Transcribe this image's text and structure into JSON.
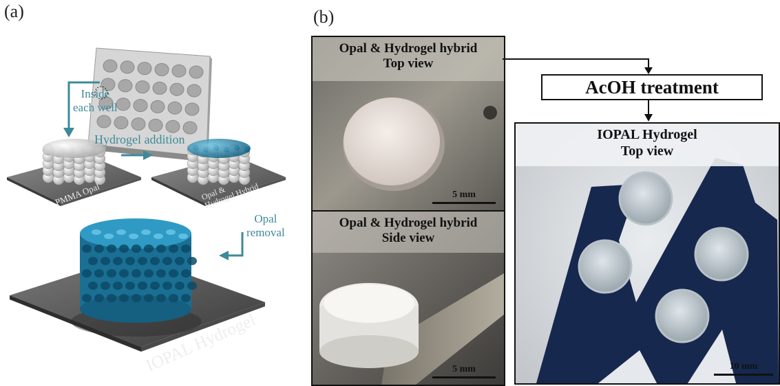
{
  "panel_a": {
    "label": "(a)",
    "step_inside_well": [
      "Inside",
      "each well"
    ],
    "step_hydrogel_addition": "Hydrogel addition",
    "step_opal_removal": [
      "Opal",
      "removal"
    ],
    "plate_pmma": "PMMA Opal",
    "plate_hybrid": [
      "Opal &",
      "Hydrogel Hybrid"
    ],
    "plate_iopal": "IOPAL Hydrogel"
  },
  "panel_b": {
    "label": "(b)",
    "photo_top": {
      "title": [
        "Opal & Hydrogel hybrid",
        "Top view"
      ],
      "scale": "5 mm"
    },
    "photo_side": {
      "title": [
        "Opal & Hydrogel hybrid",
        "Side view"
      ],
      "scale": "5 mm"
    },
    "treatment": "AcOH treatment",
    "photo_iopal": {
      "title": [
        "IOPAL Hydrogel",
        "Top view"
      ],
      "scale": "10 mm"
    }
  },
  "colors": {
    "arrow_teal": "#3e8a99",
    "hydrogel_blue": "#1f7fa6",
    "plate_gray": "#6e6e6e"
  }
}
